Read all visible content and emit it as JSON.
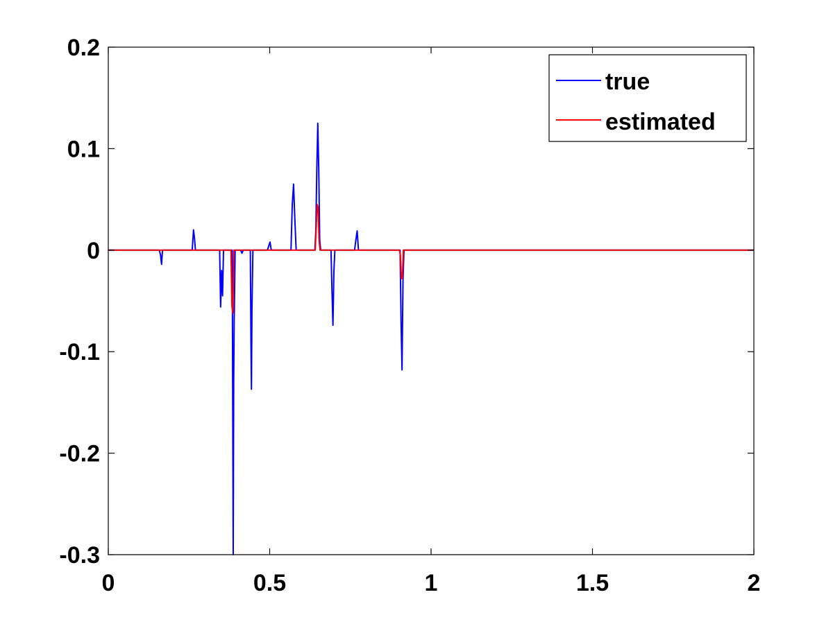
{
  "chart_data": {
    "type": "line",
    "title": "",
    "xlabel": "",
    "ylabel": "",
    "xlim": [
      0,
      2
    ],
    "ylim": [
      -0.3,
      0.2
    ],
    "xticks": [
      0,
      0.5,
      1,
      1.5,
      2
    ],
    "xtick_labels": [
      "0",
      "0.5",
      "1",
      "1.5",
      "2"
    ],
    "yticks": [
      -0.3,
      -0.2,
      -0.1,
      0,
      0.1,
      0.2
    ],
    "ytick_labels": [
      "-0.3",
      "-0.2",
      "-0.1",
      "0",
      "0.1",
      "0.2"
    ],
    "grid": false,
    "legend_position": "top-right",
    "series": [
      {
        "name": "true",
        "color": "#0000ff",
        "x": [
          0,
          0.158,
          0.162,
          0.165,
          0.168,
          0.26,
          0.264,
          0.267,
          0.27,
          0.345,
          0.348,
          0.351,
          0.354,
          0.357,
          0.38,
          0.384,
          0.3855,
          0.387,
          0.3885,
          0.39,
          0.393,
          0.41,
          0.414,
          0.418,
          0.44,
          0.442,
          0.4435,
          0.445,
          0.448,
          0.493,
          0.497,
          0.501,
          0.505,
          0.566,
          0.57,
          0.574,
          0.578,
          0.582,
          0.64,
          0.643,
          0.646,
          0.649,
          0.652,
          0.655,
          0.658,
          0.69,
          0.693,
          0.696,
          0.699,
          0.702,
          0.763,
          0.767,
          0.771,
          0.775,
          0.904,
          0.907,
          0.91,
          0.913,
          0.916,
          2
        ],
        "y": [
          0,
          0,
          -0.005,
          -0.014,
          0,
          0,
          0.02,
          0.012,
          0,
          0,
          -0.056,
          -0.02,
          -0.045,
          0,
          0,
          0,
          -0.15,
          -0.3,
          -0.13,
          -0.07,
          0,
          0,
          -0.003,
          0,
          0,
          -0.09,
          -0.137,
          -0.06,
          0,
          0,
          0.004,
          0.008,
          0,
          0,
          0.045,
          0.065,
          0.03,
          0,
          0,
          0.02,
          0.08,
          0.125,
          0.08,
          0.01,
          0,
          0,
          -0.04,
          -0.074,
          -0.02,
          0,
          0,
          0.01,
          0.019,
          0,
          0,
          -0.07,
          -0.118,
          -0.03,
          0,
          0
        ]
      },
      {
        "name": "estimated",
        "color": "#ff0000",
        "x": [
          0,
          0.38,
          0.383,
          0.386,
          0.389,
          0.641,
          0.644,
          0.647,
          0.65,
          0.653,
          0.656,
          0.902,
          0.905,
          0.908,
          0.911,
          0.914,
          2
        ],
        "y": [
          0,
          0,
          -0.055,
          -0.062,
          0,
          0,
          0.02,
          0.045,
          0.042,
          0.01,
          0,
          0,
          -0.005,
          -0.028,
          -0.028,
          0,
          0
        ]
      }
    ]
  }
}
